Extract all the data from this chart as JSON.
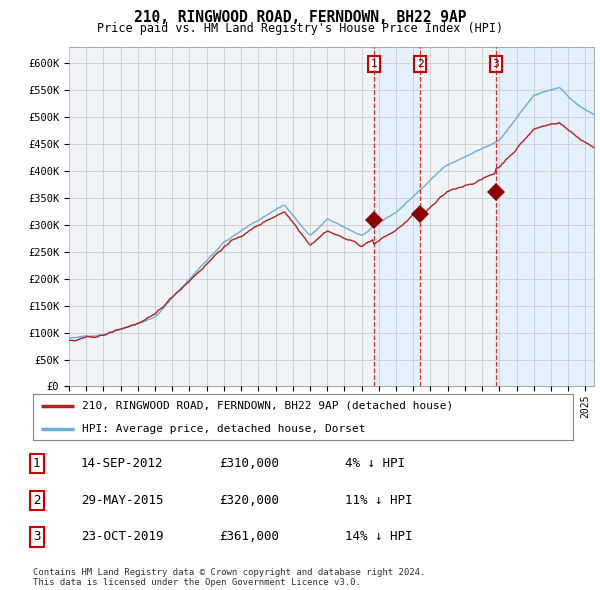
{
  "title": "210, RINGWOOD ROAD, FERNDOWN, BH22 9AP",
  "subtitle": "Price paid vs. HM Land Registry's House Price Index (HPI)",
  "ylabel_ticks": [
    "£0",
    "£50K",
    "£100K",
    "£150K",
    "£200K",
    "£250K",
    "£300K",
    "£350K",
    "£400K",
    "£450K",
    "£500K",
    "£550K",
    "£600K"
  ],
  "ytick_values": [
    0,
    50000,
    100000,
    150000,
    200000,
    250000,
    300000,
    350000,
    400000,
    450000,
    500000,
    550000,
    600000
  ],
  "ylim": [
    0,
    630000
  ],
  "xlim_start": 1995.0,
  "xlim_end": 2025.5,
  "xticks": [
    1995,
    1996,
    1997,
    1998,
    1999,
    2000,
    2001,
    2002,
    2003,
    2004,
    2005,
    2006,
    2007,
    2008,
    2009,
    2010,
    2011,
    2012,
    2013,
    2014,
    2015,
    2016,
    2017,
    2018,
    2019,
    2020,
    2021,
    2022,
    2023,
    2024,
    2025
  ],
  "hpi_color": "#6baed6",
  "price_color": "#b22222",
  "sale_marker_color": "#8b0000",
  "sale_marker_size": 9,
  "shade_color": "#ddeeff",
  "shade_alpha": 0.6,
  "sales": [
    {
      "date_num": 2012.71,
      "price": 310000,
      "label": "1"
    },
    {
      "date_num": 2015.41,
      "price": 320000,
      "label": "2"
    },
    {
      "date_num": 2019.81,
      "price": 361000,
      "label": "3"
    }
  ],
  "legend_line1": "210, RINGWOOD ROAD, FERNDOWN, BH22 9AP (detached house)",
  "legend_line2": "HPI: Average price, detached house, Dorset",
  "table_rows": [
    {
      "num": "1",
      "date": "14-SEP-2012",
      "price": "£310,000",
      "pct": "4% ↓ HPI"
    },
    {
      "num": "2",
      "date": "29-MAY-2015",
      "price": "£320,000",
      "pct": "11% ↓ HPI"
    },
    {
      "num": "3",
      "date": "23-OCT-2019",
      "price": "£361,000",
      "pct": "14% ↓ HPI"
    }
  ],
  "footnote1": "Contains HM Land Registry data © Crown copyright and database right 2024.",
  "footnote2": "This data is licensed under the Open Government Licence v3.0.",
  "background_color": "#ffffff",
  "plot_bg_color": "#f0f4f8",
  "grid_color": "#cccccc",
  "vline_color": "#cc0000",
  "vline_style": "--",
  "vline_alpha": 0.8
}
